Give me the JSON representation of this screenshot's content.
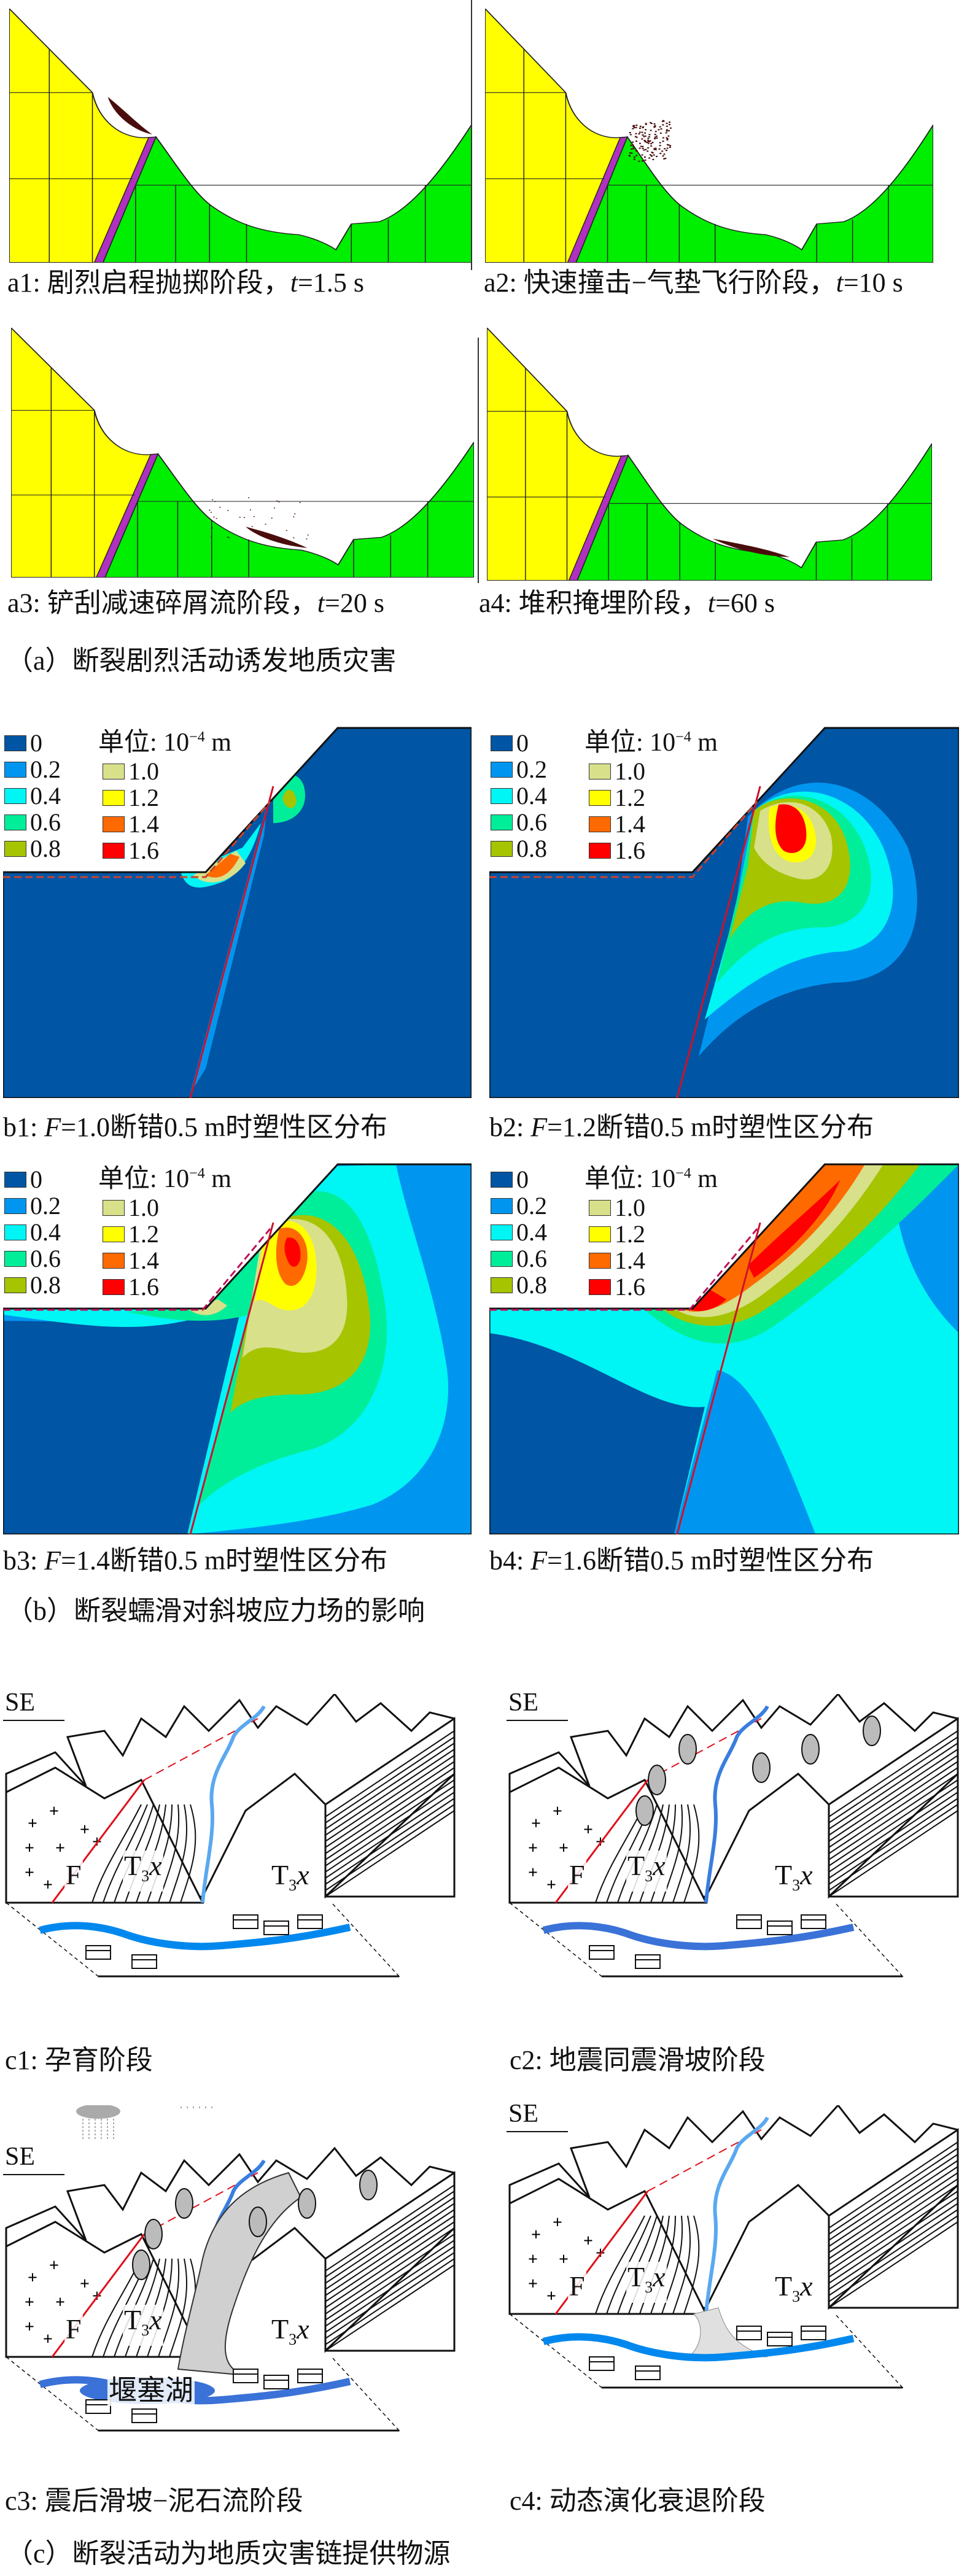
{
  "section_a": {
    "caption": "（a）断裂剧烈活动诱发地质灾害",
    "panels": [
      {
        "id": "a1",
        "stage": "a1: 剧烈启程抛掷阶段，",
        "t_label": "t",
        "t_value": "=1.5 s"
      },
      {
        "id": "a2",
        "stage": "a2: 快速撞击−气垫飞行阶段，",
        "t_label": "t",
        "t_value": "=10 s"
      },
      {
        "id": "a3",
        "stage": "a3: 铲刮减速碎屑流阶段，",
        "t_label": "t",
        "t_value": "=20 s"
      },
      {
        "id": "a4",
        "stage": "a4: 堆积掩埋阶段，",
        "t_label": "t",
        "t_value": "=60 s"
      }
    ],
    "colors": {
      "hanging_wall": "#ffff00",
      "footwall": "#00ee00",
      "fault_zone": "#b030c0",
      "debris": "#4a0d0d"
    }
  },
  "section_b": {
    "caption": "（b）断裂蠕滑对斜坡应力场的影响",
    "unit_prefix": "单位: 10",
    "unit_exp": "−4",
    "unit_suffix": " m",
    "legend": [
      {
        "value": "0",
        "color": "#0055a4"
      },
      {
        "value": "0.2",
        "color": "#0096f0"
      },
      {
        "value": "0.4",
        "color": "#00f5f5"
      },
      {
        "value": "0.6",
        "color": "#00ee99"
      },
      {
        "value": "0.8",
        "color": "#a6c400"
      },
      {
        "value": "1.0",
        "color": "#d8e08a"
      },
      {
        "value": "1.2",
        "color": "#ffff00"
      },
      {
        "value": "1.4",
        "color": "#ff6a00"
      },
      {
        "value": "1.6",
        "color": "#ff0000"
      }
    ],
    "panels": [
      {
        "id": "b1",
        "prefix": "b1: ",
        "F": "F",
        "text": "=1.0断错0.5 m时塑性区分布"
      },
      {
        "id": "b2",
        "prefix": "b2: ",
        "F": "F",
        "text": "=1.2断错0.5 m时塑性区分布"
      },
      {
        "id": "b3",
        "prefix": "b3: ",
        "F": "F",
        "text": "=1.4断错0.5 m时塑性区分布"
      },
      {
        "id": "b4",
        "prefix": "b4: ",
        "F": "F",
        "text": "=1.6断错0.5 m时塑性区分布"
      }
    ]
  },
  "section_c": {
    "caption": "（c）断裂活动为地质灾害链提供物源",
    "direction": "SE",
    "fault_label": "F",
    "strata_label": "T",
    "strata_sub": "3",
    "strata_italic": "x",
    "lake_label": "堰塞湖",
    "panels": [
      {
        "id": "c1",
        "caption": "c1: 孕育阶段"
      },
      {
        "id": "c2",
        "caption": "c2: 地震同震滑坡阶段"
      },
      {
        "id": "c3",
        "caption": "c3: 震后滑坡−泥石流阶段"
      },
      {
        "id": "c4",
        "caption": "c4: 动态演化衰退阶段"
      }
    ]
  }
}
